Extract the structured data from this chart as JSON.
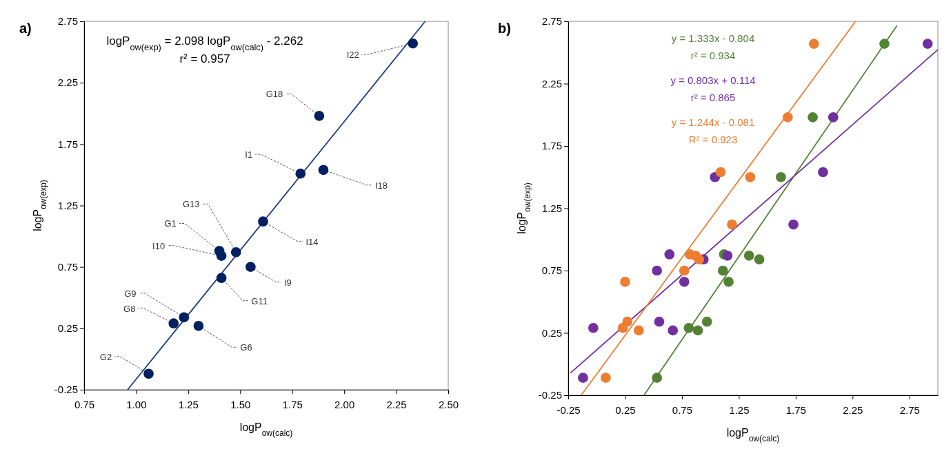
{
  "chart_data": [
    {
      "type": "scatter",
      "title": "a)",
      "xlabel": "logP$_{ow(calc)}$",
      "ylabel": "logP$_{ow(exp)}$",
      "xlim": [
        0.75,
        2.5
      ],
      "ylim": [
        -0.25,
        2.75
      ],
      "xticks": [
        0.75,
        {
          "value": 1,
          "label": "1.00"
        },
        1.25,
        {
          "value": 1.5,
          "label": "1.50"
        },
        1.75,
        {
          "value": 2,
          "label": "2.00"
        },
        2.25,
        {
          "value": 2.5,
          "label": "2.50"
        }
      ],
      "yticks": [
        -0.25,
        0.25,
        0.75,
        1.25,
        1.75,
        2.25,
        2.75
      ],
      "grid": false,
      "series": [
        {
          "marker": "circle",
          "color": "#002060",
          "x": [
            1.06,
            1.18,
            1.23,
            1.3,
            1.41,
            1.41,
            1.4,
            1.48,
            1.55,
            1.61,
            1.79,
            1.9,
            1.88,
            2.33
          ],
          "values": [
            -0.12,
            0.29,
            0.34,
            0.27,
            0.66,
            0.84,
            0.88,
            0.87,
            0.75,
            1.12,
            1.51,
            1.54,
            1.98,
            2.57
          ]
        },
        {
          "type": "line",
          "color": "#1f3a7a",
          "x": [
            0.959,
            2.389
          ],
          "values": [
            -0.25,
            2.75
          ]
        }
      ],
      "annotations": [
        "logP$_{ow(exp)}$ = 2.098 logP$_{ow(calc)}$ - 2.262",
        "r² = 0.957",
        {
          "text": "G2",
          "x": 1.06,
          "y": -0.12
        },
        {
          "text": "G8",
          "x": 1.18,
          "y": 0.29
        },
        {
          "text": "G9",
          "x": 1.23,
          "y": 0.34
        },
        {
          "text": "G6",
          "x": 1.3,
          "y": 0.27
        },
        {
          "text": "G11",
          "x": 1.41,
          "y": 0.66
        },
        {
          "text": "I10",
          "x": 1.41,
          "y": 0.84
        },
        {
          "text": "G1",
          "x": 1.4,
          "y": 0.88
        },
        {
          "text": "G13",
          "x": 1.48,
          "y": 0.87
        },
        {
          "text": "I9",
          "x": 1.55,
          "y": 0.75
        },
        {
          "text": "I14",
          "x": 1.61,
          "y": 1.12
        },
        {
          "text": "I1",
          "x": 1.79,
          "y": 1.51
        },
        {
          "text": "I18",
          "x": 1.9,
          "y": 1.54
        },
        {
          "text": "G18",
          "x": 1.88,
          "y": 1.98
        },
        {
          "text": "I22",
          "x": 2.33,
          "y": 2.57
        }
      ]
    },
    {
      "type": "scatter",
      "title": "b)",
      "xlabel": "logP$_{ow(calc)}$",
      "ylabel": "logP$_{ow(exp)}$",
      "xlim": [
        -0.25,
        3.0
      ],
      "ylim": [
        -0.25,
        2.75
      ],
      "xticks": [
        -0.25,
        0.25,
        0.75,
        1.25,
        1.75,
        2.25,
        2.75
      ],
      "yticks": [
        -0.25,
        0.25,
        0.75,
        1.25,
        1.75,
        2.25,
        2.75
      ],
      "grid": false,
      "series": [
        {
          "marker": "circle",
          "color": "#548235",
          "x": [
            2.53,
            1.9,
            1.62,
            1.12,
            1.11,
            1.16,
            1.34,
            1.43,
            0.81,
            0.89,
            0.97,
            0.53
          ],
          "values": [
            2.57,
            1.98,
            1.5,
            0.88,
            0.75,
            0.66,
            0.87,
            0.84,
            0.29,
            0.27,
            0.34,
            -0.11
          ]
        },
        {
          "marker": "circle",
          "color": "#7030a0",
          "x": [
            2.91,
            2.08,
            1.99,
            1.04,
            1.73,
            0.64,
            1.15,
            0.94,
            0.53,
            0.77,
            0.55,
            0.67,
            -0.03,
            -0.12
          ],
          "values": [
            2.57,
            1.98,
            1.54,
            1.5,
            1.12,
            0.88,
            0.87,
            0.84,
            0.75,
            0.66,
            0.34,
            0.27,
            0.29,
            -0.11
          ]
        },
        {
          "marker": "circle",
          "color": "#ed7d31",
          "x": [
            1.91,
            1.68,
            1.09,
            1.35,
            1.19,
            0.82,
            0.87,
            0.9,
            0.77,
            0.25,
            0.27,
            0.23,
            0.37,
            0.08
          ],
          "values": [
            2.57,
            1.98,
            1.54,
            1.5,
            1.12,
            0.88,
            0.87,
            0.84,
            0.75,
            0.66,
            0.34,
            0.29,
            0.27,
            -0.11
          ]
        },
        {
          "type": "line",
          "color": "#548235",
          "x": [
            0.416,
            2.64
          ],
          "values": [
            -0.25,
            2.715
          ]
        },
        {
          "type": "line",
          "color": "#7030a0",
          "x": [
            -0.23,
            3.0
          ],
          "values": [
            -0.071,
            2.523
          ]
        },
        {
          "type": "line",
          "color": "#ed7d31",
          "x": [
            -0.136,
            2.276
          ],
          "values": [
            -0.25,
            2.75
          ]
        }
      ],
      "annotations": [
        "y = 1.333x - 0.804",
        "r² = 0.934",
        "y = 0.803x + 0.114",
        "r² = 0.865",
        "y = 1.244x - 0.081",
        "R² = 0.923"
      ]
    }
  ]
}
